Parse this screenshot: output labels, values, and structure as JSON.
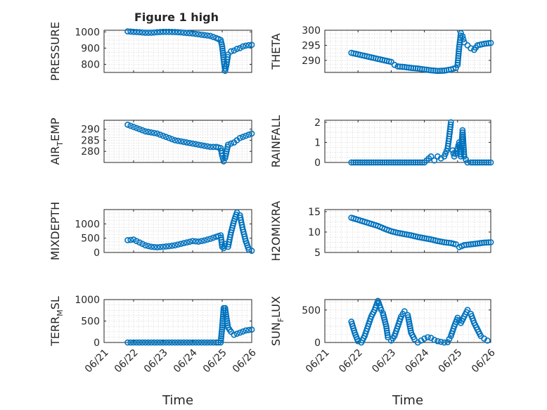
{
  "figure": {
    "title": "Figure 1 high",
    "marker_color": "#0072BD"
  },
  "chart_data": [
    {
      "type": "scatter",
      "ylabel": "PRESSURE",
      "ylabel_sub": "",
      "ylabel_tail": "",
      "xlim": [
        0,
        5
      ],
      "ylim": [
        750,
        1010
      ],
      "yticks": [
        800,
        900,
        1000
      ],
      "xticks": [
        0,
        1,
        2,
        3,
        4,
        5
      ],
      "xticklabels": [
        "06/21",
        "06/22",
        "06/23",
        "06/24",
        "06/25",
        "06/26"
      ],
      "show_xticklabels": false,
      "xlabel": "",
      "x": [
        0.8,
        1.0,
        1.2,
        1.4,
        1.6,
        1.8,
        2.0,
        2.2,
        2.4,
        2.6,
        2.8,
        3.0,
        3.2,
        3.4,
        3.6,
        3.8,
        3.95,
        4.0,
        4.05,
        4.1,
        4.15,
        4.2,
        4.3,
        4.4,
        4.5,
        4.6,
        4.7,
        4.8,
        4.9,
        5.0
      ],
      "y": [
        1003,
        1000,
        998,
        995,
        995,
        998,
        1000,
        1000,
        999,
        997,
        993,
        990,
        985,
        980,
        975,
        962,
        950,
        910,
        830,
        760,
        800,
        860,
        880,
        885,
        895,
        900,
        910,
        915,
        918,
        920
      ]
    },
    {
      "type": "scatter",
      "ylabel": "THETA",
      "ylabel_sub": "",
      "ylabel_tail": "",
      "xlim": [
        0,
        5
      ],
      "ylim": [
        286,
        300
      ],
      "yticks": [
        290,
        295,
        300
      ],
      "xticks": [
        0,
        1,
        2,
        3,
        4,
        5
      ],
      "xticklabels": [
        "06/21",
        "06/22",
        "06/23",
        "06/24",
        "06/25",
        "06/26"
      ],
      "show_xticklabels": false,
      "xlabel": "",
      "x": [
        0.8,
        1.0,
        1.2,
        1.4,
        1.6,
        1.8,
        2.0,
        2.1,
        2.2,
        2.4,
        2.6,
        2.8,
        3.0,
        3.2,
        3.4,
        3.6,
        3.8,
        3.95,
        4.0,
        4.05,
        4.1,
        4.15,
        4.2,
        4.3,
        4.4,
        4.5,
        4.6,
        4.8,
        5.0
      ],
      "y": [
        292.5,
        292,
        291.5,
        291,
        290.5,
        290,
        289.5,
        288.5,
        288,
        287.8,
        287.5,
        287.3,
        287,
        286.7,
        286.5,
        286.6,
        287,
        287.5,
        288.5,
        294.5,
        299,
        298,
        296,
        295,
        294,
        293.5,
        295,
        295.5,
        295.8
      ]
    },
    {
      "type": "scatter",
      "ylabel": "AIR",
      "ylabel_sub": "T",
      "ylabel_tail": "EMP",
      "xlim": [
        0,
        5
      ],
      "ylim": [
        275,
        294
      ],
      "yticks": [
        280,
        285,
        290
      ],
      "xticks": [
        0,
        1,
        2,
        3,
        4,
        5
      ],
      "xticklabels": [
        "06/21",
        "06/22",
        "06/23",
        "06/24",
        "06/25",
        "06/26"
      ],
      "show_xticklabels": false,
      "xlabel": "",
      "x": [
        0.8,
        1.0,
        1.2,
        1.4,
        1.6,
        1.8,
        2.0,
        2.2,
        2.4,
        2.6,
        2.8,
        3.0,
        3.2,
        3.4,
        3.6,
        3.8,
        3.95,
        4.0,
        4.05,
        4.1,
        4.15,
        4.2,
        4.3,
        4.4,
        4.5,
        4.6,
        4.8,
        5.0
      ],
      "y": [
        292,
        291,
        290,
        289,
        288.5,
        288,
        287,
        286,
        285,
        284.5,
        284,
        283.5,
        283,
        282.5,
        282,
        282,
        281.5,
        278,
        275.5,
        277,
        280,
        283,
        283.5,
        284,
        285,
        286,
        287,
        288
      ]
    },
    {
      "type": "scatter",
      "ylabel": "RAINFALL",
      "ylabel_sub": "",
      "ylabel_tail": "",
      "xlim": [
        0,
        5
      ],
      "ylim": [
        0,
        2.1
      ],
      "yticks": [
        0,
        1,
        2
      ],
      "xticks": [
        0,
        1,
        2,
        3,
        4,
        5
      ],
      "xticklabels": [
        "06/21",
        "06/22",
        "06/23",
        "06/24",
        "06/25",
        "06/26"
      ],
      "show_xticklabels": false,
      "xlabel": "",
      "x": [
        0.8,
        1.0,
        1.2,
        1.4,
        1.6,
        1.8,
        2.0,
        2.2,
        2.4,
        2.6,
        2.8,
        3.0,
        3.2,
        3.3,
        3.4,
        3.5,
        3.6,
        3.7,
        3.75,
        3.8,
        3.85,
        3.9,
        4.0,
        4.05,
        4.1,
        4.15,
        4.2,
        4.3,
        4.4,
        4.6,
        4.8,
        5.0
      ],
      "y": [
        0,
        0,
        0,
        0,
        0,
        0,
        0,
        0,
        0,
        0,
        0,
        0,
        0.3,
        0.1,
        0.3,
        0.2,
        0.3,
        0.7,
        1.3,
        2.0,
        0.6,
        0.3,
        0.7,
        1.0,
        0.3,
        1.6,
        0.3,
        0,
        0,
        0,
        0,
        0
      ]
    },
    {
      "type": "scatter",
      "ylabel": "MIXDEPTH",
      "ylabel_sub": "",
      "ylabel_tail": "",
      "xlim": [
        0,
        5
      ],
      "ylim": [
        0,
        1500
      ],
      "yticks": [
        0,
        500,
        1000
      ],
      "xticks": [
        0,
        1,
        2,
        3,
        4,
        5
      ],
      "xticklabels": [
        "06/21",
        "06/22",
        "06/23",
        "06/24",
        "06/25",
        "06/26"
      ],
      "show_xticklabels": false,
      "xlabel": "",
      "x": [
        0.8,
        1.0,
        1.2,
        1.4,
        1.6,
        1.8,
        2.0,
        2.2,
        2.4,
        2.6,
        2.8,
        3.0,
        3.2,
        3.4,
        3.6,
        3.8,
        3.95,
        4.0,
        4.05,
        4.1,
        4.2,
        4.3,
        4.4,
        4.5,
        4.6,
        4.7,
        4.8,
        4.9,
        5.0
      ],
      "y": [
        430,
        450,
        350,
        250,
        200,
        180,
        200,
        220,
        250,
        300,
        350,
        400,
        380,
        420,
        480,
        550,
        600,
        200,
        150,
        300,
        200,
        700,
        1100,
        1400,
        1300,
        800,
        400,
        100,
        60
      ]
    },
    {
      "type": "scatter",
      "ylabel": "H2OMIXRA",
      "ylabel_sub": "",
      "ylabel_tail": "",
      "xlim": [
        0,
        5
      ],
      "ylim": [
        5,
        15.5
      ],
      "yticks": [
        5,
        10,
        15
      ],
      "xticks": [
        0,
        1,
        2,
        3,
        4,
        5
      ],
      "xticklabels": [
        "06/21",
        "06/22",
        "06/23",
        "06/24",
        "06/25",
        "06/26"
      ],
      "show_xticklabels": false,
      "xlabel": "",
      "x": [
        0.8,
        1.0,
        1.2,
        1.4,
        1.6,
        1.8,
        2.0,
        2.2,
        2.4,
        2.6,
        2.8,
        3.0,
        3.2,
        3.4,
        3.6,
        3.8,
        3.95,
        4.05,
        4.2,
        4.4,
        4.6,
        4.8,
        5.0
      ],
      "y": [
        13.5,
        13,
        12.5,
        12,
        11.5,
        10.8,
        10.2,
        9.8,
        9.5,
        9.2,
        8.8,
        8.5,
        8.2,
        7.8,
        7.5,
        7.3,
        7.0,
        6.3,
        6.8,
        7.0,
        7.2,
        7.4,
        7.5
      ]
    },
    {
      "type": "scatter",
      "ylabel": "TERR",
      "ylabel_sub": "M",
      "ylabel_tail": "SL",
      "xlim": [
        0,
        5
      ],
      "ylim": [
        0,
        1000
      ],
      "yticks": [
        0,
        500,
        1000
      ],
      "xticks": [
        0,
        1,
        2,
        3,
        4,
        5
      ],
      "xticklabels": [
        "06/21",
        "06/22",
        "06/23",
        "06/24",
        "06/25",
        "06/26"
      ],
      "show_xticklabels": true,
      "xlabel": "Time",
      "x": [
        0.8,
        1.0,
        1.2,
        1.4,
        1.6,
        1.8,
        2.0,
        2.2,
        2.4,
        2.6,
        2.8,
        3.0,
        3.2,
        3.4,
        3.6,
        3.8,
        3.95,
        4.0,
        4.05,
        4.1,
        4.15,
        4.2,
        4.3,
        4.4,
        4.6,
        4.8,
        5.0
      ],
      "y": [
        0,
        0,
        0,
        0,
        0,
        0,
        0,
        0,
        0,
        0,
        0,
        0,
        0,
        0,
        0,
        0,
        0,
        350,
        800,
        800,
        550,
        350,
        250,
        180,
        230,
        280,
        300
      ]
    },
    {
      "type": "scatter",
      "ylabel": "SUN",
      "ylabel_sub": "F",
      "ylabel_tail": "LUX",
      "xlim": [
        0,
        5
      ],
      "ylim": [
        0,
        660
      ],
      "yticks": [
        0,
        500
      ],
      "xticks": [
        0,
        1,
        2,
        3,
        4,
        5
      ],
      "xticklabels": [
        "06/21",
        "06/22",
        "06/23",
        "06/24",
        "06/25",
        "06/26"
      ],
      "show_xticklabels": true,
      "xlabel": "Time",
      "x": [
        0.8,
        0.9,
        1.0,
        1.1,
        1.2,
        1.3,
        1.4,
        1.5,
        1.6,
        1.7,
        1.75,
        1.8,
        1.85,
        1.9,
        2.0,
        2.1,
        2.2,
        2.3,
        2.4,
        2.5,
        2.6,
        2.7,
        2.8,
        2.9,
        3.0,
        3.1,
        3.2,
        3.3,
        3.4,
        3.5,
        3.6,
        3.7,
        3.8,
        3.9,
        4.0,
        4.1,
        4.2,
        4.3,
        4.4,
        4.5,
        4.6,
        4.7,
        4.8,
        4.9
      ],
      "y": [
        320,
        150,
        20,
        0,
        100,
        250,
        400,
        500,
        640,
        500,
        450,
        350,
        250,
        80,
        30,
        100,
        250,
        400,
        480,
        420,
        150,
        50,
        0,
        30,
        60,
        80,
        70,
        40,
        20,
        10,
        0,
        5,
        100,
        250,
        380,
        300,
        400,
        500,
        440,
        300,
        200,
        100,
        60,
        30
      ]
    }
  ]
}
